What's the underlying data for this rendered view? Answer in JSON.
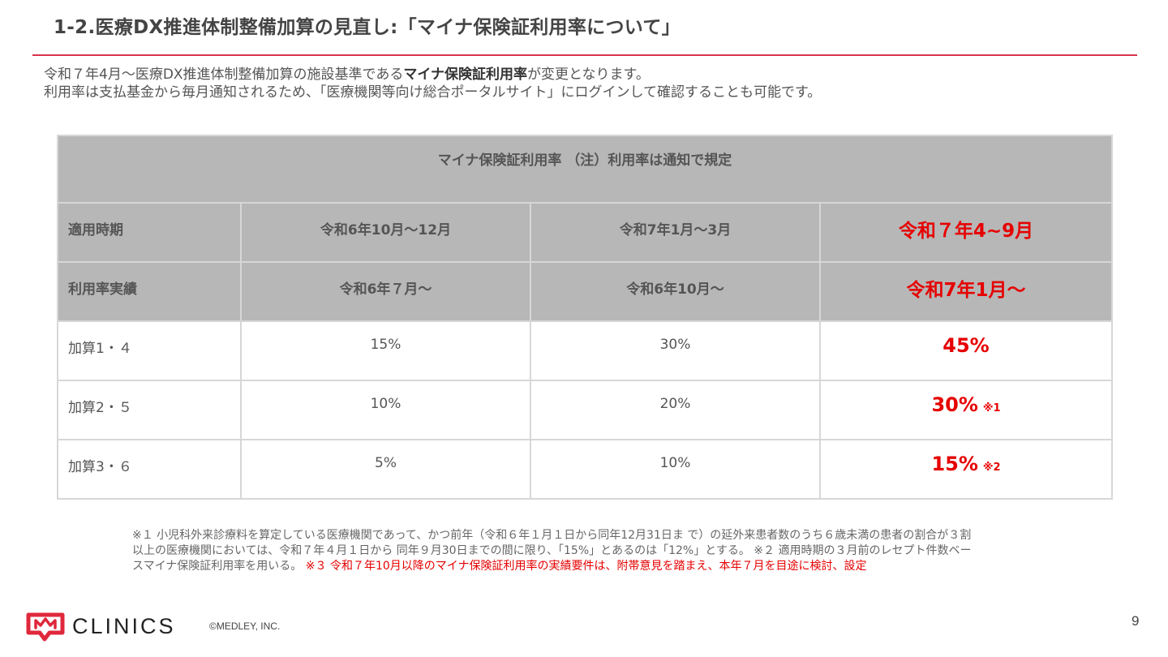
{
  "title": "1-2.医療DX推進体制整備加算の見直し:「マイナ保険証利用率について」",
  "intro": {
    "line1_pre": "令和７年4月〜医療DX推進体制整備加算の施設基準である",
    "line1_bold": "マイナ保険証利用率",
    "line1_post": "が変更となります。",
    "line2": "利用率は支払基金から毎月通知されるため、「医療機関等向け総合ポータルサイト」にログインして確認することも可能です。"
  },
  "table": {
    "caption": "マイナ保険証利用率 （注）利用率は通知で規定",
    "period_row": {
      "label": "適用時期",
      "cols": [
        "令和6年10月〜12月",
        "令和7年1月〜3月",
        "令和７年4~9月"
      ]
    },
    "actual_row": {
      "label": "利用率実績",
      "cols": [
        "令和6年７月〜",
        "令和6年10月〜",
        "令和7年1月〜"
      ]
    },
    "rows": [
      {
        "label": "加算1・４",
        "v1": "15%",
        "v2": "30%",
        "v3": "45%",
        "note": ""
      },
      {
        "label": "加算2・５",
        "v1": "10%",
        "v2": "20%",
        "v3": "30%",
        "note": "※1"
      },
      {
        "label": "加算3・６",
        "v1": "5%",
        "v2": "10%",
        "v3": "15%",
        "note": "※2"
      }
    ]
  },
  "footnote": {
    "line1": "※１ 小児科外来診療料を算定している医療機関であって、かつ前年（令和６年１月１日から同年12月31日ま で）の延外来患者数のうち６歳未満の患者の割合が３割",
    "line2": "以上の医療機関においては、令和７年４月１日から 同年９月30日までの間に限り、「15%」とあるのは「12%」とする。 ※２ 適用時期の３月前のレセプト件数ベー",
    "line3_pre": "スマイナ保険証利用率を用いる。",
    "line3_red": "※３ 令和７年10月以降のマイナ保険証利用率の実績要件は、附帯意見を踏まえ、本年７月を目途に検討、設定"
  },
  "footer": {
    "logo_text": "CLINICS",
    "copyright": "©MEDLEY, INC.",
    "page_number": "9"
  },
  "colors": {
    "accent_rule": "#d9324a",
    "highlight_red": "#e60000",
    "header_gray": "#b7b7b7",
    "logo_red": "#e0283c"
  },
  "icons": [
    "clinics-logo-icon"
  ]
}
